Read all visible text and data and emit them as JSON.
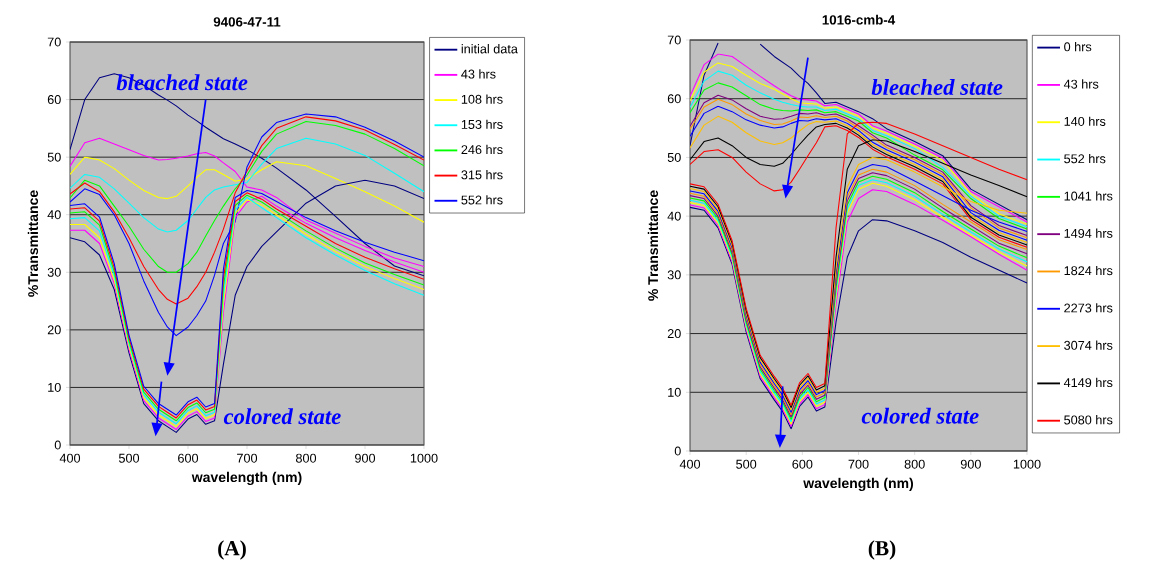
{
  "chart_data": [
    {
      "type": "line",
      "title": "9406-47-11",
      "xlabel": "wavelength (nm)",
      "ylabel": "%Transmittance",
      "x": [
        400,
        425,
        450,
        475,
        500,
        525,
        550,
        565,
        580,
        600,
        615,
        630,
        645,
        660,
        680,
        700,
        725,
        750,
        800,
        850,
        900,
        950,
        1000
      ],
      "xlim": [
        400,
        1000
      ],
      "xticks": [
        400,
        500,
        600,
        700,
        800,
        900,
        1000
      ],
      "ylim": [
        0,
        70
      ],
      "yticks": [
        0,
        10,
        20,
        30,
        40,
        50,
        60,
        70
      ],
      "grid": "y",
      "legend": "right",
      "marker": "none",
      "series": [
        {
          "name": "initial data",
          "color": "#000080",
          "values": [
            51.3,
            60,
            63.8,
            64.5,
            63.8,
            62.5,
            60.8,
            59.9,
            58.9,
            57.3,
            56.3,
            55.2,
            54.2,
            53.2,
            52.3,
            51.3,
            49.8,
            48.1,
            44.3,
            39.7,
            35,
            31.1,
            29.4
          ]
        },
        {
          "name": "43 hrs",
          "color": "#ff00ff",
          "values": [
            48.4,
            52.5,
            53.3,
            52.3,
            51.3,
            50.3,
            49.5,
            49.6,
            49.8,
            50.2,
            50.6,
            50.8,
            50.2,
            49,
            47.5,
            44.8,
            44.3,
            43,
            39.1,
            36.8,
            34.5,
            32.5,
            31
          ]
        },
        {
          "name": "108 hrs",
          "color": "#ffff00",
          "values": [
            47,
            50,
            49.5,
            48,
            46,
            44.2,
            43,
            42.8,
            43.2,
            45,
            46.5,
            47.8,
            47.8,
            47,
            45.8,
            46.2,
            47.8,
            49.2,
            48.5,
            46.3,
            44,
            41.5,
            38.7
          ]
        },
        {
          "name": "153 hrs",
          "color": "#00ffff",
          "values": [
            44.6,
            47,
            46.5,
            44.5,
            42,
            39.5,
            37.5,
            37,
            37.3,
            39,
            41,
            43,
            44.3,
            44.8,
            45.2,
            45.6,
            48.8,
            51.5,
            53.3,
            52.3,
            50.3,
            47.2,
            44
          ]
        },
        {
          "name": "246 hrs",
          "color": "#00ff00",
          "values": [
            42.9,
            46,
            45,
            41.5,
            38,
            34,
            31,
            30,
            30,
            31.5,
            33.5,
            36.3,
            39,
            41.5,
            44.5,
            46.9,
            51,
            54,
            56.2,
            55.5,
            54,
            51.5,
            48.5
          ]
        },
        {
          "name": "315 hrs",
          "color": "#ff0000",
          "values": [
            43.6,
            45.5,
            44,
            40.5,
            36,
            31,
            27,
            25.3,
            24.5,
            25.5,
            27.5,
            30,
            33.5,
            37.5,
            43.8,
            47.6,
            52,
            55,
            57,
            56.3,
            54.7,
            52.2,
            49.5
          ]
        },
        {
          "name": "552 hrs",
          "color": "#0000ff",
          "values": [
            42.2,
            44.5,
            43.5,
            40,
            35,
            28.5,
            23,
            20.5,
            19,
            20.5,
            22.5,
            25,
            29.5,
            35,
            38.8,
            48.3,
            53.5,
            56,
            57.5,
            57,
            55.2,
            52.8,
            50
          ]
        },
        {
          "color": "#000080",
          "values": [
            36,
            35.3,
            33,
            27,
            16,
            7.2,
            4.2,
            3.2,
            2.2,
            4.5,
            5.3,
            3.6,
            4.2,
            14,
            26,
            31,
            34.5,
            37,
            42,
            45,
            46,
            45,
            42.8
          ]
        },
        {
          "color": "#ff00ff",
          "values": [
            37.3,
            37.3,
            35,
            28,
            16.6,
            7.7,
            4.7,
            3.7,
            2.7,
            5,
            5.8,
            4.1,
            4.7,
            23,
            39.5,
            42.2,
            43.2,
            41.5,
            38.5,
            36,
            33.8,
            31.8,
            30
          ]
        },
        {
          "color": "#ffff00",
          "values": [
            38.3,
            38.3,
            36,
            28.6,
            17.1,
            8.2,
            5.2,
            4.2,
            3.2,
            5.5,
            6.3,
            4.6,
            5.2,
            24.5,
            40.2,
            42.6,
            41.7,
            40,
            36.6,
            33.6,
            31,
            28.9,
            27
          ]
        },
        {
          "color": "#00ffff",
          "values": [
            39.3,
            39.5,
            37.2,
            29.4,
            17.6,
            8.7,
            5.7,
            4.7,
            3.7,
            6,
            6.8,
            5.1,
            5.7,
            26,
            40.9,
            43,
            41.2,
            39.5,
            36,
            33,
            30.3,
            28,
            26
          ]
        },
        {
          "color": "#00ff00",
          "values": [
            40.3,
            40.5,
            38.2,
            30.1,
            18.1,
            9.2,
            6.2,
            5.2,
            4.2,
            6.5,
            7.3,
            5.6,
            6.2,
            27.5,
            41.6,
            43.4,
            42.2,
            40.5,
            37.2,
            34.2,
            31.6,
            29.6,
            27.8
          ]
        },
        {
          "color": "#ff0000",
          "values": [
            41,
            41.2,
            38.9,
            30.8,
            18.6,
            9.7,
            6.7,
            5.7,
            4.7,
            7,
            7.8,
            6.1,
            6.7,
            29,
            42.3,
            43.8,
            42.7,
            41,
            38,
            35,
            32.6,
            30.6,
            28.8
          ]
        },
        {
          "color": "#0000ff",
          "values": [
            41.6,
            41.9,
            39.6,
            31.5,
            19.1,
            10.2,
            7.2,
            6.2,
            5.2,
            7.5,
            8.3,
            6.6,
            7.2,
            30.5,
            43,
            44.2,
            43.7,
            42.3,
            39.5,
            37.2,
            35.2,
            33.5,
            32
          ]
        }
      ],
      "annotations": [
        "bleached state",
        "colored state",
        "**(A)**"
      ]
    },
    {
      "type": "line",
      "title": "1016-cmb-4",
      "xlabel": "wavelength (nm)",
      "ylabel": "% Transmittance",
      "x": [
        400,
        425,
        450,
        475,
        500,
        525,
        550,
        565,
        580,
        595,
        610,
        625,
        640,
        660,
        680,
        700,
        725,
        750,
        800,
        850,
        900,
        950,
        1000
      ],
      "xlim": [
        400,
        1000
      ],
      "xticks": [
        400,
        500,
        600,
        700,
        800,
        900,
        1000
      ],
      "ylim": [
        0,
        70
      ],
      "yticks": [
        0,
        10,
        20,
        30,
        40,
        50,
        60,
        70
      ],
      "grid": "y",
      "legend": "right",
      "marker": "none",
      "series": [
        {
          "name": "0 hrs",
          "color": "#000080",
          "values": [
            52,
            64,
            69.5,
            null,
            null,
            69.3,
            67.2,
            66.2,
            65.2,
            63.8,
            62.6,
            61,
            59.2,
            59.4,
            58.6,
            57.8,
            56.6,
            54.9,
            52.7,
            50.3,
            44.6,
            42,
            39.4
          ]
        },
        {
          "name": "43 hrs",
          "color": "#ff00ff",
          "values": [
            60.4,
            65.8,
            67.6,
            67.2,
            65.5,
            63.8,
            62.2,
            61.3,
            60.5,
            59.9,
            59.8,
            59.6,
            58.8,
            59,
            58.2,
            57.4,
            55.4,
            54.5,
            52.3,
            49.9,
            44.2,
            41.6,
            39
          ]
        },
        {
          "name": "140 hrs",
          "color": "#ffff00",
          "values": [
            59.6,
            64.5,
            66.1,
            65.5,
            64,
            62.6,
            61.6,
            60.8,
            60,
            59.3,
            59.2,
            59.1,
            58.4,
            58.6,
            57.8,
            57,
            55,
            54.1,
            51.9,
            49.5,
            43.8,
            40.4,
            38.6
          ]
        },
        {
          "name": "552 hrs",
          "color": "#00ffff",
          "values": [
            58.5,
            63,
            64.7,
            64,
            62.3,
            61,
            59.9,
            59.4,
            59,
            58.7,
            58.6,
            58.6,
            58,
            58.2,
            57.4,
            56.6,
            54.6,
            53.7,
            51.5,
            48.3,
            43.4,
            40,
            38.2
          ]
        },
        {
          "name": "1041 hrs",
          "color": "#00ff00",
          "values": [
            57.6,
            61.5,
            62.7,
            62,
            60.5,
            59,
            58.2,
            58,
            57.9,
            58.1,
            58,
            58.1,
            57.6,
            57.8,
            57,
            56.2,
            54.2,
            53.3,
            50.4,
            47.9,
            43,
            39.6,
            37.8
          ]
        },
        {
          "name": "1494 hrs",
          "color": "#800080",
          "values": [
            55.3,
            59.3,
            60.6,
            59.8,
            58.3,
            57,
            56.5,
            56.6,
            57,
            57.5,
            57.4,
            57.6,
            57.2,
            57.4,
            56.6,
            55.4,
            53.8,
            52.1,
            50,
            47.5,
            41.8,
            38.4,
            36.7
          ]
        },
        {
          "name": "1824 hrs",
          "color": "#ff9900",
          "values": [
            54.8,
            58.6,
            59.9,
            59,
            57.4,
            56.3,
            55.6,
            55.7,
            56.2,
            56.9,
            56.8,
            57.1,
            56.8,
            57,
            56.2,
            55,
            53.4,
            51.7,
            49.6,
            47.1,
            41.4,
            38,
            36.3
          ]
        },
        {
          "name": "2273 hrs",
          "color": "#0000ff",
          "values": [
            53.6,
            57.5,
            58.7,
            57.8,
            56.4,
            55.5,
            55,
            55.2,
            55.8,
            56.3,
            56.2,
            56.6,
            56.4,
            56.6,
            55.8,
            54.6,
            52.6,
            51.3,
            49.2,
            46.7,
            40.6,
            37.6,
            35.9
          ]
        },
        {
          "name": "3074 hrs",
          "color": "#ffc000",
          "values": [
            51.6,
            55.5,
            57,
            56,
            54.2,
            52.8,
            52.2,
            52.5,
            53.3,
            54.5,
            55.6,
            56.1,
            56,
            56.2,
            55.4,
            54.2,
            52.2,
            50.9,
            48.8,
            46.3,
            40.2,
            37.2,
            35.5
          ]
        },
        {
          "name": "4149 hrs",
          "color": "#000000",
          "values": [
            49.6,
            52.7,
            53.3,
            52,
            50,
            48.8,
            48.5,
            49,
            50.5,
            52.2,
            53.8,
            55.2,
            55.6,
            55.8,
            55,
            53.8,
            51.8,
            50.5,
            48.4,
            45.9,
            39.8,
            36.8,
            35.1
          ]
        },
        {
          "name": "5080 hrs",
          "color": "#ff0000",
          "values": [
            48.8,
            51,
            51.3,
            50,
            47.5,
            45.5,
            44.3,
            44.5,
            45.8,
            48,
            50.3,
            52.5,
            55.2,
            55.4,
            54.6,
            53.4,
            51.4,
            50.1,
            48,
            45.5,
            39.4,
            36.4,
            34.7
          ]
        },
        {
          "color": "#000080",
          "values": [
            41.5,
            41,
            38,
            31.8,
            20.3,
            12.3,
            8.7,
            6.7,
            3.8,
            7.6,
            9.2,
            6.8,
            7.5,
            22,
            33,
            37.5,
            39.4,
            39.2,
            37.5,
            35.5,
            33,
            30.8,
            28.6
          ]
        },
        {
          "color": "#ff00ff",
          "values": [
            41.9,
            41.4,
            38.4,
            32.2,
            20.7,
            12.7,
            9.1,
            7.1,
            4.2,
            8,
            9.6,
            7.2,
            7.9,
            25,
            39,
            43,
            44.5,
            44.2,
            42,
            39.3,
            36.5,
            33.5,
            30.8
          ]
        },
        {
          "color": "#ffff00",
          "values": [
            42.3,
            41.8,
            38.8,
            32.6,
            21.1,
            13.1,
            9.5,
            7.5,
            4.6,
            8.4,
            10,
            7.6,
            8.3,
            26.2,
            40.5,
            44.6,
            45.6,
            45.1,
            42.8,
            39.8,
            36.8,
            33.9,
            31.5
          ]
        },
        {
          "color": "#00ffff",
          "values": [
            42.7,
            42.2,
            39.2,
            33,
            21.5,
            13.5,
            9.9,
            7.9,
            5,
            8.8,
            10.4,
            8,
            8.7,
            27,
            41.2,
            45.2,
            46.2,
            45.7,
            43.4,
            40.3,
            37.3,
            34.4,
            32.2
          ]
        },
        {
          "color": "#00ff00",
          "values": [
            43.1,
            42.6,
            39.6,
            33.4,
            21.9,
            13.9,
            10.3,
            8.3,
            5.4,
            9.2,
            10.8,
            8.4,
            9.1,
            27.8,
            41.9,
            45.8,
            46.8,
            46.3,
            44,
            40.8,
            37.8,
            34.9,
            32.9
          ]
        },
        {
          "color": "#800080",
          "values": [
            43.5,
            43,
            40,
            33.8,
            22.3,
            14.3,
            10.7,
            8.7,
            5.8,
            9.6,
            11.2,
            8.8,
            9.5,
            28.6,
            42.6,
            46.4,
            47.4,
            46.9,
            44.6,
            41.4,
            38.4,
            35.4,
            33.6
          ]
        },
        {
          "color": "#ff9900",
          "values": [
            43.9,
            43.4,
            40.4,
            34.2,
            22.7,
            14.7,
            11.1,
            9.1,
            6.2,
            10,
            11.6,
            9.2,
            9.9,
            29.4,
            43.3,
            47,
            48,
            47.5,
            45.2,
            42,
            39,
            36,
            34.3
          ]
        },
        {
          "color": "#0000ff",
          "values": [
            44.3,
            43.8,
            40.8,
            34.6,
            23.1,
            15.1,
            11.5,
            9.5,
            6.6,
            10.4,
            12,
            9.6,
            10.3,
            30.2,
            44,
            47.8,
            48.8,
            48.4,
            46,
            43.5,
            41,
            39,
            37.4
          ]
        },
        {
          "color": "#ffc000",
          "values": [
            44.7,
            44.2,
            41.2,
            35,
            23.5,
            15.5,
            11.9,
            9.9,
            7,
            10.8,
            12.4,
            10,
            10.7,
            31.2,
            45,
            48.8,
            50,
            49.6,
            47.5,
            45,
            42.5,
            41,
            40.5
          ]
        },
        {
          "color": "#000000",
          "values": [
            45.1,
            44.6,
            41.6,
            35.4,
            23.9,
            15.9,
            12.3,
            10.3,
            7.4,
            11.2,
            12.8,
            10.4,
            11.1,
            33,
            48,
            52,
            53,
            52.8,
            51,
            49,
            47,
            45.2,
            43.3
          ]
        },
        {
          "color": "#ff0000",
          "values": [
            45.5,
            45,
            42,
            35.8,
            24.3,
            16.3,
            12.7,
            10.7,
            7.8,
            11.6,
            13.2,
            10.8,
            11.5,
            38,
            54,
            55.8,
            56,
            55.8,
            54,
            52,
            50,
            48,
            46.2
          ]
        }
      ],
      "annotations": [
        "bleached state",
        "colored state",
        "**(B)**"
      ]
    }
  ]
}
